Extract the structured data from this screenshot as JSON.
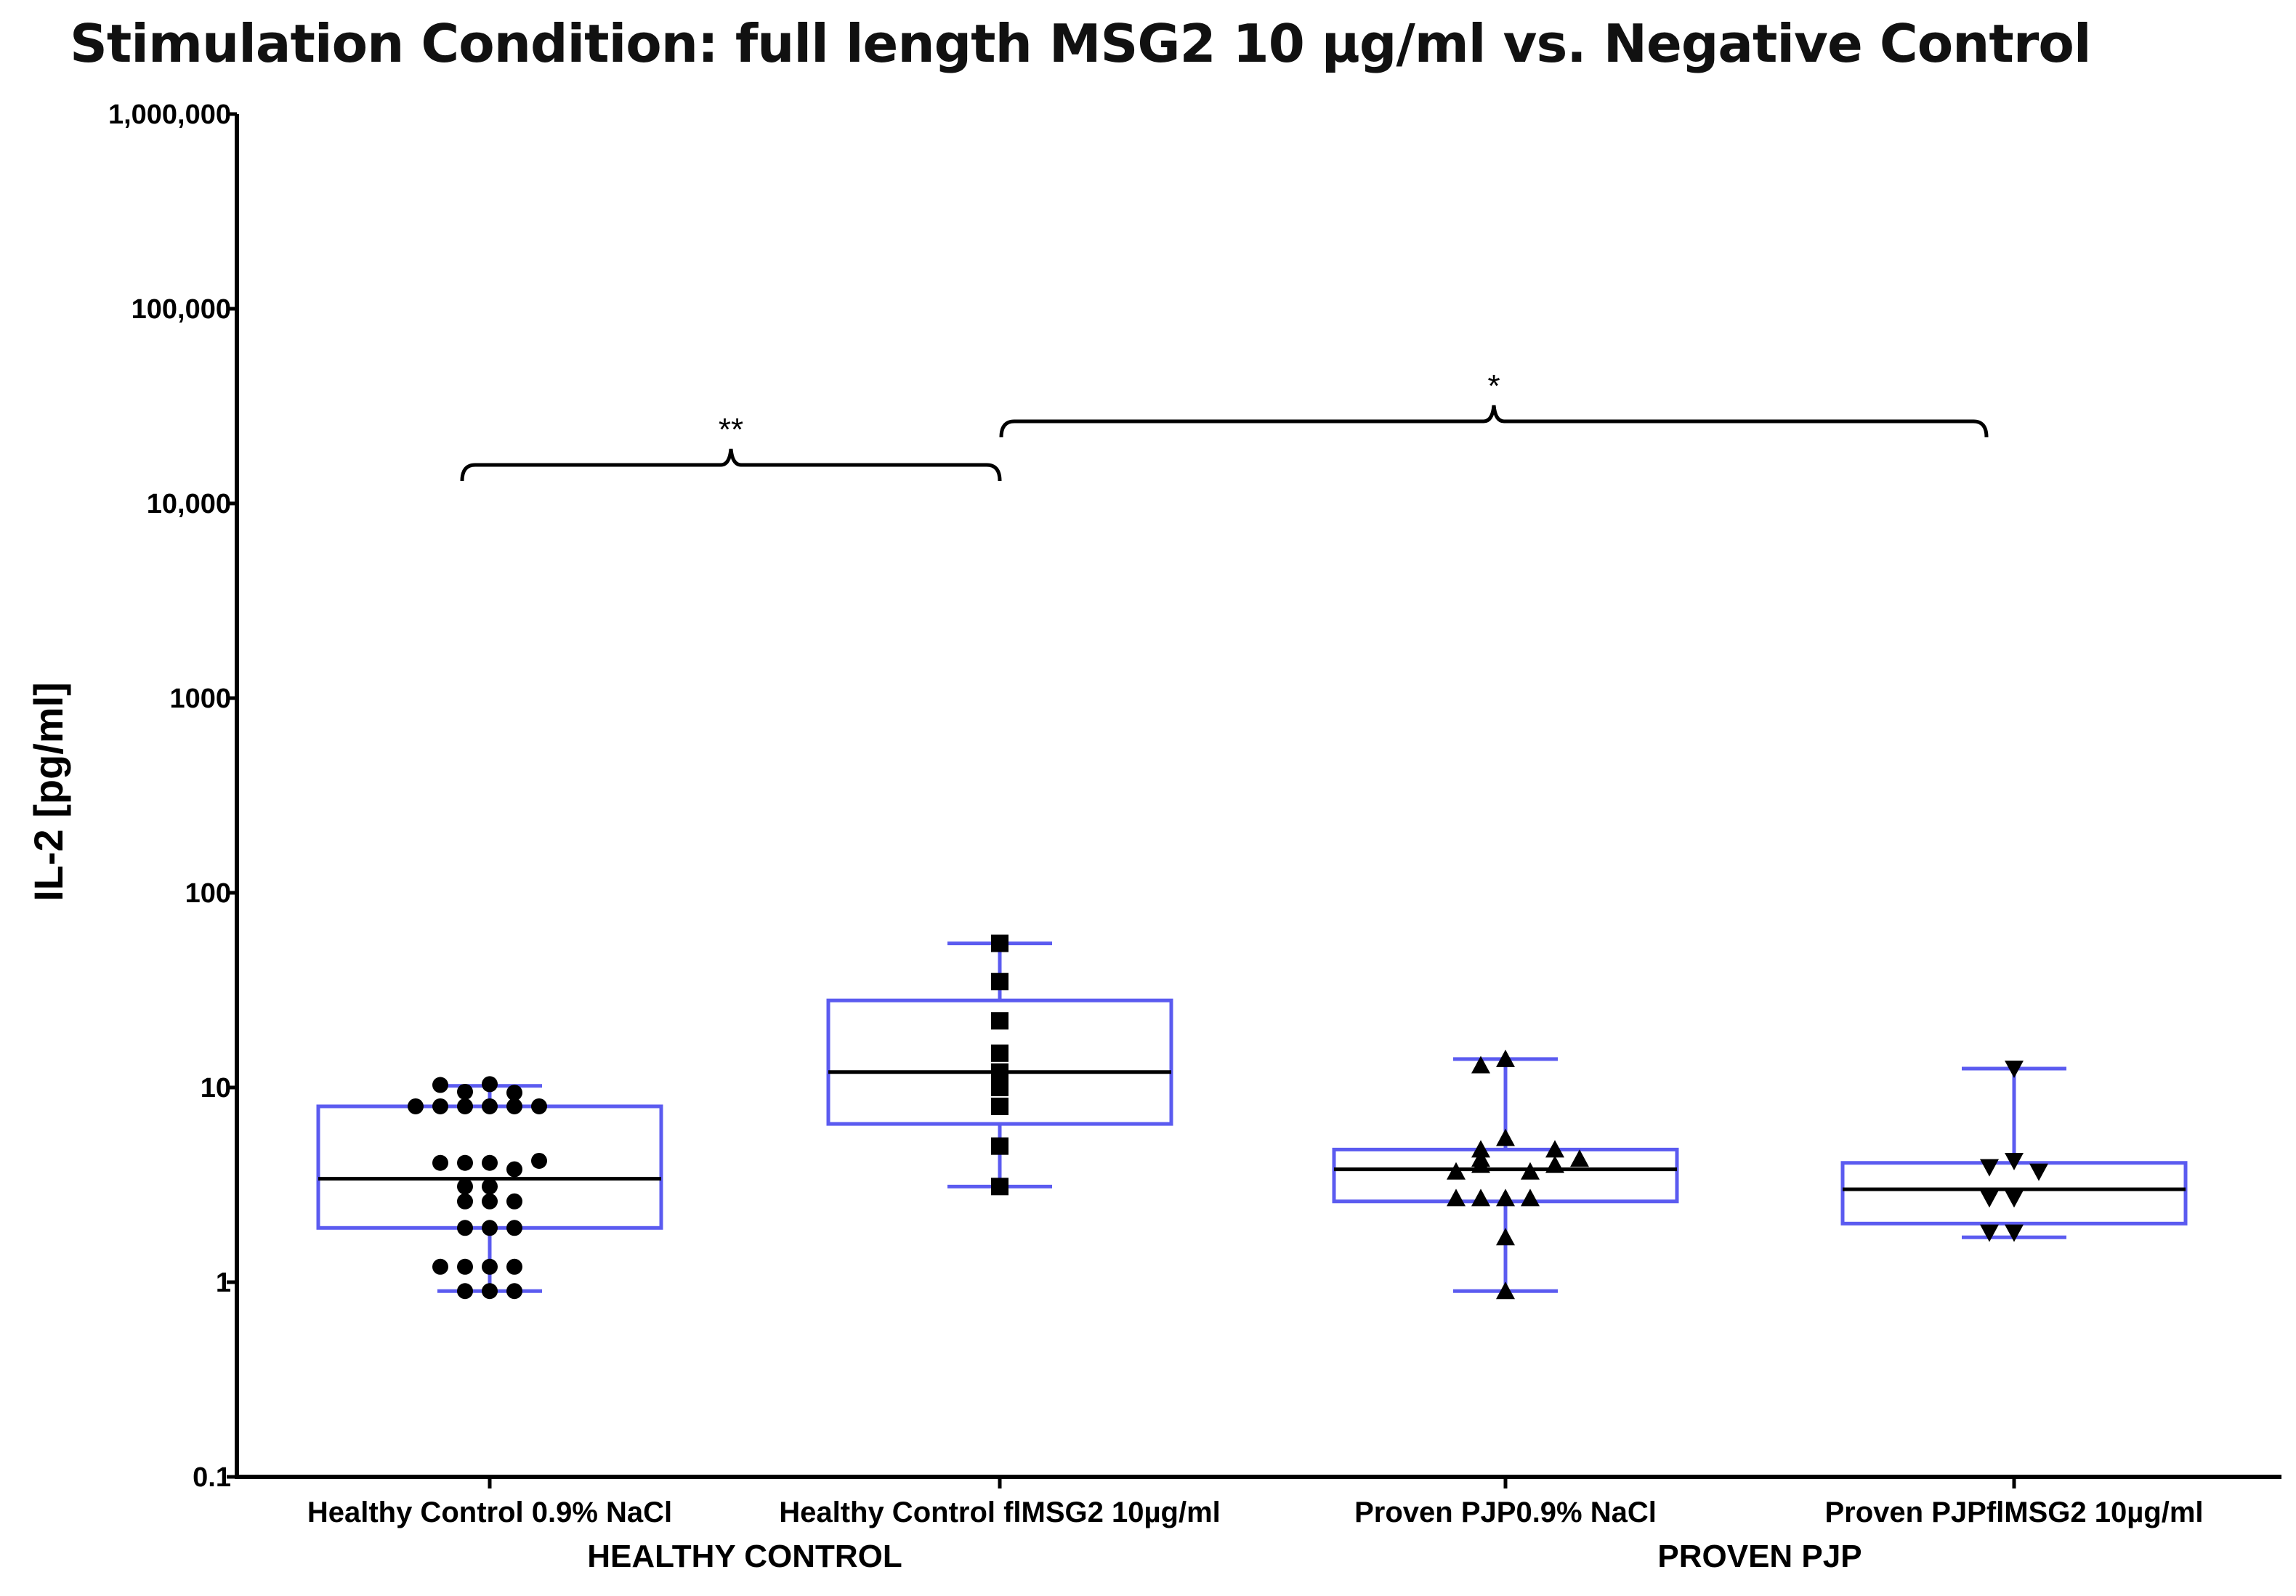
{
  "chart_data": {
    "type": "box",
    "title": "Stimulation Condition: full length MSG2 10 µg/ml vs. Negative Control",
    "ylabel": "IL-2  [pg/ml]",
    "yscale": "log",
    "ylim": [
      0.1,
      1000000
    ],
    "yticks": [
      {
        "value": 0.1,
        "label": "0.1"
      },
      {
        "value": 1,
        "label": "1"
      },
      {
        "value": 10,
        "label": "10"
      },
      {
        "value": 100,
        "label": "100"
      },
      {
        "value": 1000,
        "label": "1000"
      },
      {
        "value": 10000,
        "label": "10,000"
      },
      {
        "value": 100000,
        "label": "100,000"
      },
      {
        "value": 1000000,
        "label": "1,000,000"
      }
    ],
    "groups": [
      {
        "label": "HEALTHY CONTROL",
        "categories": [
          0,
          1
        ]
      },
      {
        "label": "PROVEN PJP",
        "categories": [
          2,
          3
        ]
      }
    ],
    "box_color": "#5b5bf0",
    "series": [
      {
        "name": "Healthy Control 0.9% NaCl",
        "marker": "circle",
        "box": {
          "min": 0.9,
          "q1": 1.9,
          "median": 3.4,
          "q3": 8.0,
          "max": 10.2
        },
        "points": [
          10.4,
          9.5,
          8.0,
          8.0,
          8.0,
          8.0,
          8.0,
          8.0,
          9.4,
          10.3,
          4.1,
          4.1,
          3.8,
          4.1,
          4.2,
          3.1,
          3.1,
          2.6,
          2.6,
          2.6,
          1.9,
          1.9,
          1.9,
          1.2,
          1.2,
          1.2,
          1.2,
          0.9,
          0.9,
          0.9
        ]
      },
      {
        "name": "Healthy Control flMSG2 10µg/ml",
        "marker": "square",
        "box": {
          "min": 3.1,
          "q1": 6.5,
          "median": 12.0,
          "q3": 28.0,
          "max": 55.0
        },
        "points": [
          55.0,
          35.0,
          22.0,
          15.0,
          12.0,
          10.0,
          8.0,
          5.0,
          3.1
        ]
      },
      {
        "name": "Proven PJP0.9% NaCl",
        "marker": "triangle-up",
        "box": {
          "min": 0.9,
          "q1": 2.6,
          "median": 3.8,
          "q3": 4.8,
          "max": 14.0
        },
        "points": [
          14.0,
          13.0,
          5.5,
          4.8,
          4.3,
          4.0,
          3.7,
          3.7,
          4.0,
          4.3,
          4.8,
          2.7,
          2.7,
          2.7,
          2.7,
          1.7,
          0.9
        ]
      },
      {
        "name": "Proven PJPflMSG2 10µg/ml",
        "marker": "triangle-down",
        "box": {
          "min": 1.7,
          "q1": 2.0,
          "median": 3.0,
          "q3": 4.1,
          "max": 12.5
        },
        "points": [
          12.5,
          4.2,
          3.9,
          3.7,
          2.7,
          2.7,
          1.8,
          1.8
        ]
      }
    ],
    "annotations": [
      {
        "label": "**",
        "from_category": 0,
        "to_category": 1
      },
      {
        "label": "*",
        "from_category": 1,
        "to_category": 3
      }
    ]
  }
}
